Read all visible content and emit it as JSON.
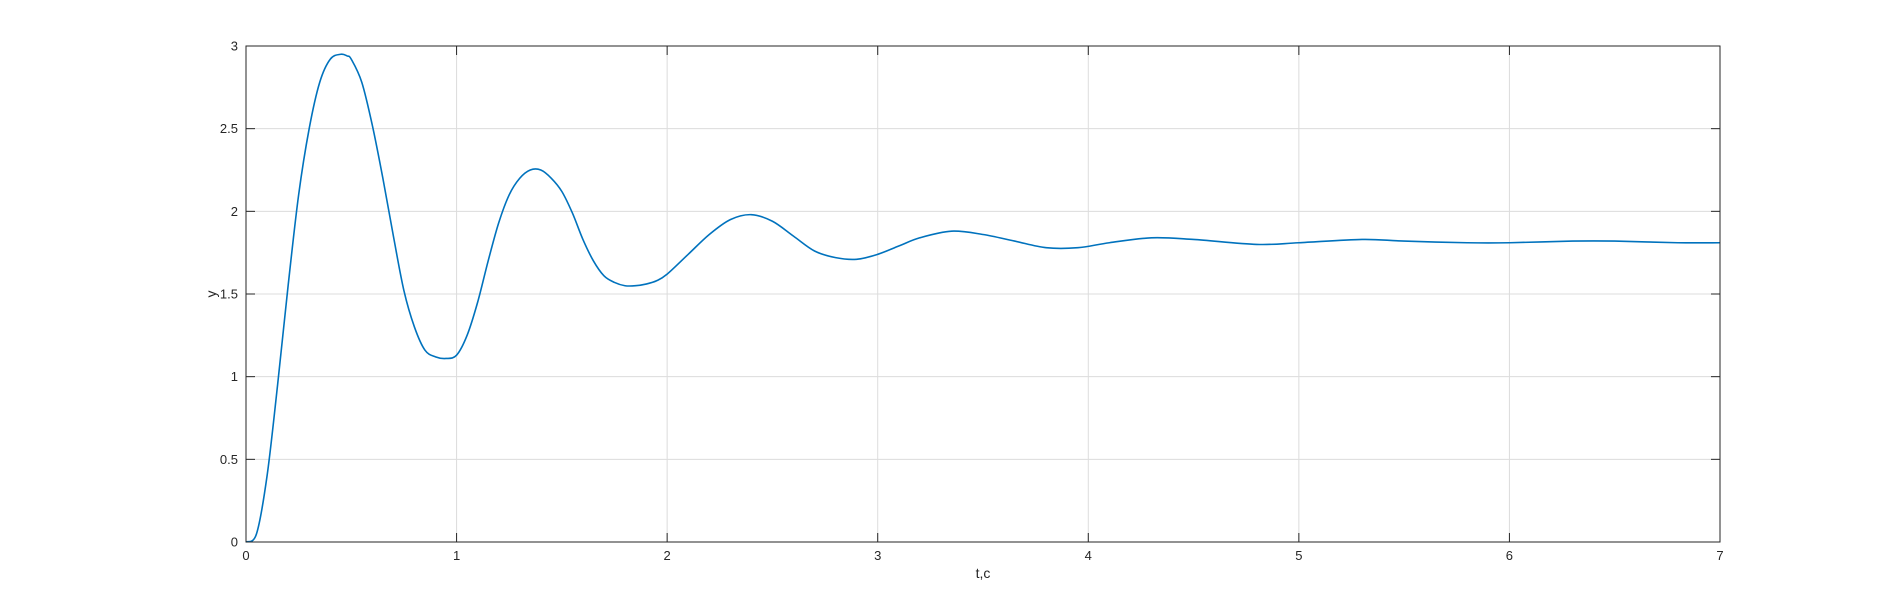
{
  "chart_data": {
    "type": "line",
    "title": "",
    "xlabel": "t,c",
    "ylabel": "y",
    "xlim": [
      0,
      7
    ],
    "ylim": [
      0,
      3
    ],
    "xticks": [
      "0",
      "1",
      "2",
      "3",
      "4",
      "5",
      "6",
      "7"
    ],
    "yticks": [
      "0",
      "0.5",
      "1",
      "1.5",
      "2",
      "2.5",
      "3"
    ],
    "grid": true,
    "legend": "none",
    "colors": {
      "line": "#0072BD",
      "axis": "#262626",
      "grid": "#dcdcdc",
      "background": "#ffffff"
    },
    "series": [
      {
        "x": [
          0.0,
          0.05,
          0.1,
          0.15,
          0.2,
          0.25,
          0.3,
          0.35,
          0.4,
          0.45,
          0.48,
          0.5,
          0.55,
          0.6,
          0.65,
          0.7,
          0.75,
          0.8,
          0.85,
          0.9,
          0.95,
          1.0,
          1.05,
          1.1,
          1.15,
          1.2,
          1.25,
          1.3,
          1.35,
          1.4,
          1.45,
          1.5,
          1.55,
          1.6,
          1.65,
          1.7,
          1.75,
          1.8,
          1.85,
          1.9,
          1.95,
          2.0,
          2.1,
          2.2,
          2.3,
          2.4,
          2.5,
          2.6,
          2.7,
          2.8,
          2.9,
          3.0,
          3.1,
          3.2,
          3.35,
          3.5,
          3.65,
          3.8,
          3.95,
          4.1,
          4.3,
          4.5,
          4.8,
          5.0,
          5.3,
          5.5,
          5.8,
          6.0,
          6.3,
          6.5,
          6.8,
          7.0
        ],
        "y": [
          0.0,
          0.05,
          0.4,
          0.95,
          1.55,
          2.1,
          2.5,
          2.78,
          2.92,
          2.95,
          2.94,
          2.92,
          2.78,
          2.52,
          2.2,
          1.85,
          1.52,
          1.3,
          1.16,
          1.12,
          1.11,
          1.13,
          1.25,
          1.45,
          1.7,
          1.93,
          2.1,
          2.2,
          2.25,
          2.25,
          2.2,
          2.12,
          1.99,
          1.83,
          1.7,
          1.61,
          1.57,
          1.55,
          1.55,
          1.56,
          1.58,
          1.62,
          1.74,
          1.86,
          1.95,
          1.98,
          1.94,
          1.85,
          1.76,
          1.72,
          1.71,
          1.74,
          1.79,
          1.84,
          1.88,
          1.86,
          1.82,
          1.78,
          1.78,
          1.81,
          1.84,
          1.83,
          1.8,
          1.81,
          1.83,
          1.82,
          1.81,
          1.81,
          1.82,
          1.82,
          1.81,
          1.81
        ]
      }
    ]
  }
}
